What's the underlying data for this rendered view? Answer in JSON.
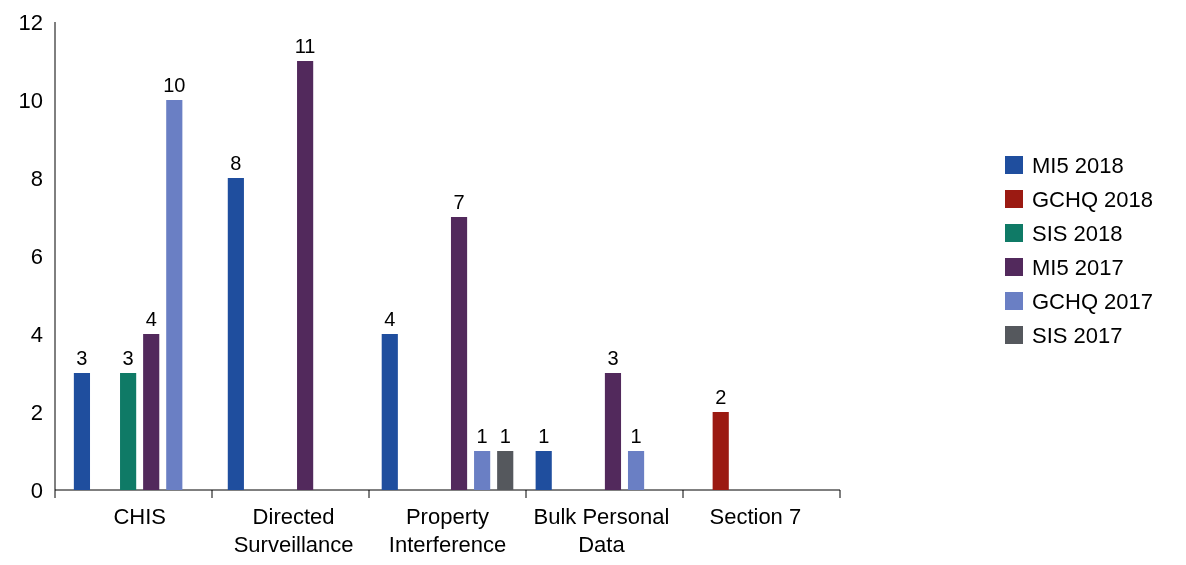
{
  "chart_data": {
    "type": "bar",
    "categories": [
      "CHIS",
      "Directed Surveillance",
      "Property Interference",
      "Bulk Personal Data",
      "Section 7"
    ],
    "series": [
      {
        "name": "MI5 2018",
        "color": "#1f4e9e",
        "values": [
          3,
          8,
          4,
          1,
          null
        ]
      },
      {
        "name": "GCHQ 2018",
        "color": "#9b1a12",
        "values": [
          null,
          null,
          null,
          null,
          2
        ]
      },
      {
        "name": "SIS 2018",
        "color": "#0f7a66",
        "values": [
          3,
          null,
          null,
          null,
          null
        ]
      },
      {
        "name": "MI5 2017",
        "color": "#52295c",
        "values": [
          4,
          11,
          7,
          3,
          null
        ]
      },
      {
        "name": "GCHQ 2017",
        "color": "#6a7fc4",
        "values": [
          10,
          null,
          1,
          1,
          null
        ]
      },
      {
        "name": "SIS 2017",
        "color": "#55585d",
        "values": [
          null,
          null,
          1,
          null,
          null
        ]
      }
    ],
    "ylim": [
      0,
      12
    ],
    "yticks": [
      0,
      2,
      4,
      6,
      8,
      10,
      12
    ],
    "data_labels": true,
    "legend": "right",
    "grid": false
  }
}
